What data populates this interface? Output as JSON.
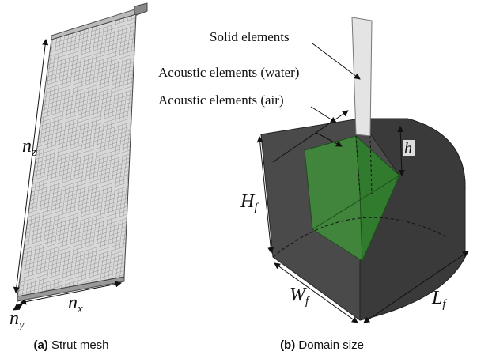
{
  "panels": [
    {
      "label": "(a)",
      "caption": "Strut mesh",
      "annotations": [
        {
          "symbol": "n",
          "subscript": "z"
        },
        {
          "symbol": "n",
          "subscript": "x"
        },
        {
          "symbol": "n",
          "subscript": "y"
        }
      ]
    },
    {
      "label": "(b)",
      "caption": "Domain size",
      "callouts": [
        "Solid elements",
        "Acoustic elements (water)",
        "Acoustic elements (air)"
      ],
      "annotations": [
        {
          "symbol": "h"
        },
        {
          "symbol": "H",
          "subscript": "f"
        },
        {
          "symbol": "W",
          "subscript": "f"
        },
        {
          "symbol": "L",
          "subscript": "f"
        }
      ]
    }
  ]
}
